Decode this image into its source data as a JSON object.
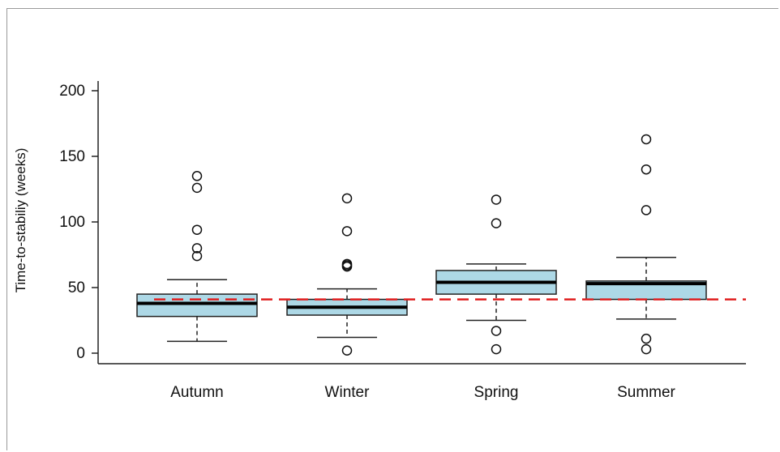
{
  "chart_data": {
    "type": "box",
    "title": "",
    "xlabel": "",
    "ylabel": "Time-to-stabiliy (weeks)",
    "ylim": [
      -8,
      208
    ],
    "yticks": [
      0,
      50,
      100,
      150,
      200
    ],
    "categories": [
      "Autumn",
      "Winter",
      "Spring",
      "Summer"
    ],
    "box_color": "#add8e6",
    "reference_line": {
      "value": 41,
      "color": "#e02020",
      "style": "dashed"
    },
    "boxes": [
      {
        "category": "Autumn",
        "whisker_low": 9,
        "q1": 28,
        "median": 38,
        "q3": 45,
        "whisker_high": 56,
        "outliers": [
          74,
          80,
          94,
          126,
          135
        ]
      },
      {
        "category": "Winter",
        "whisker_low": 12,
        "q1": 29,
        "median": 35,
        "q3": 41,
        "whisker_high": 49,
        "outliers": [
          2,
          66,
          67,
          68,
          93,
          118
        ]
      },
      {
        "category": "Spring",
        "whisker_low": 25,
        "q1": 45,
        "median": 54,
        "q3": 63,
        "whisker_high": 68,
        "outliers": [
          3,
          17,
          99,
          117
        ]
      },
      {
        "category": "Summer",
        "whisker_low": 26,
        "q1": 41,
        "median": 53,
        "q3": 55,
        "whisker_high": 73,
        "outliers": [
          3,
          11,
          109,
          140,
          163
        ]
      }
    ]
  }
}
